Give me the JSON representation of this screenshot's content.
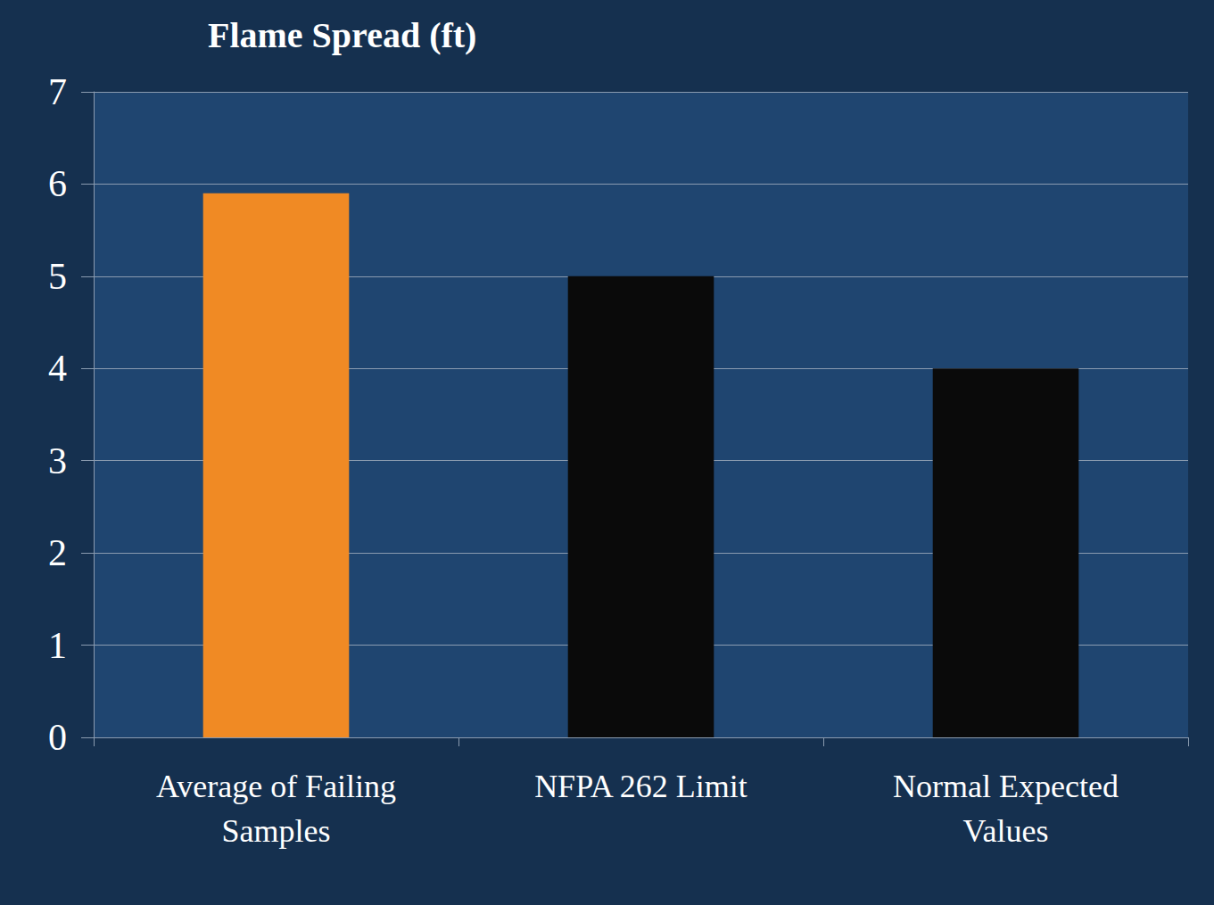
{
  "chart_data": {
    "type": "bar",
    "title": "Flame Spread (ft)",
    "categories": [
      "Average of Failing Samples",
      "NFPA 262 Limit",
      "Normal Expected Values"
    ],
    "values": [
      5.9,
      5,
      4
    ],
    "colors": [
      "#f08a24",
      "#0a0a0a",
      "#0a0a0a"
    ],
    "ylim": [
      0,
      7
    ],
    "yticks": [
      0,
      1,
      2,
      3,
      4,
      5,
      6,
      7
    ],
    "grid": true
  }
}
